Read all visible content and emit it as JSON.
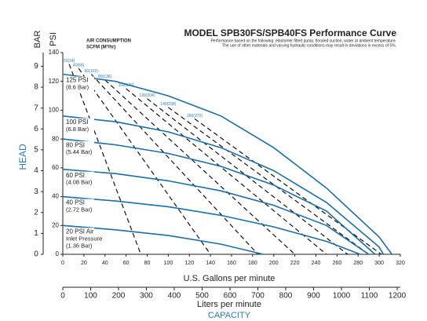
{
  "chart_data": {
    "type": "line",
    "title": "MODEL SPB30FS/SPB40FS Performance Curve",
    "subtitle": [
      "Performance based on the following: elastomer fitted pump, flooded suction, water at ambient temperature.",
      "The use of other materials and varying hydraulic conditions may result in deviations in excess of 5%."
    ],
    "air_title": [
      "AIR CONSUMPTION",
      "SCFM (M³/hr)"
    ],
    "y_label": "PSI",
    "y2_label": "BAR",
    "head_label": "HEAD",
    "x_label": "U.S. Gallons per minute",
    "x2_label": "Liters per minute",
    "capacity_label": "CAPACITY",
    "xlim": [
      0,
      320
    ],
    "xticks": [
      0,
      20,
      40,
      60,
      80,
      100,
      120,
      140,
      160,
      180,
      200,
      220,
      240,
      260,
      280,
      300,
      320
    ],
    "x2lim": [
      0,
      1211.2
    ],
    "x2ticks": [
      0,
      100,
      200,
      300,
      400,
      500,
      600,
      700,
      800,
      900,
      1000,
      1100,
      1200
    ],
    "ylim": [
      0,
      140
    ],
    "yticks": [
      0,
      20,
      40,
      60,
      80,
      100,
      120,
      140
    ],
    "y2lim": [
      0,
      9.655
    ],
    "y2ticks": [
      0,
      1,
      2,
      3,
      4,
      5,
      6,
      7,
      8,
      9
    ],
    "grid": false,
    "series": [
      {
        "name": "125 PSI",
        "label_lines": [
          "(8.6 Bar)"
        ],
        "color": "#1b6ea8",
        "x": [
          0,
          50,
          100,
          150,
          200,
          250,
          300,
          312
        ],
        "values": [
          125,
          120,
          110,
          96,
          74,
          46,
          12,
          0
        ]
      },
      {
        "name": "100 PSI",
        "label_lines": [
          "(6.8 Bar)"
        ],
        "color": "#1b6ea8",
        "x": [
          0,
          50,
          100,
          150,
          200,
          250,
          300,
          304
        ],
        "values": [
          96,
          92,
          85,
          74,
          58,
          36,
          5,
          0
        ]
      },
      {
        "name": "80 PSI",
        "label_lines": [
          "(5.44 Bar)"
        ],
        "color": "#1b6ea8",
        "x": [
          0,
          50,
          100,
          150,
          200,
          250,
          296
        ],
        "values": [
          80,
          76,
          70,
          61,
          48,
          30,
          0
        ]
      },
      {
        "name": "60 PSI",
        "label_lines": [
          "(4.08 Bar)"
        ],
        "color": "#1b6ea8",
        "x": [
          0,
          50,
          100,
          150,
          200,
          250,
          290
        ],
        "values": [
          59,
          56,
          51,
          44,
          34,
          20,
          0
        ]
      },
      {
        "name": "40 PSI",
        "label_lines": [
          "(2.72 Bar)"
        ],
        "color": "#1b6ea8",
        "x": [
          0,
          50,
          100,
          150,
          200,
          250,
          282
        ],
        "values": [
          40,
          37,
          33,
          27,
          19,
          9,
          0
        ]
      },
      {
        "name": "20 PSI Air",
        "label_lines": [
          "Inlet Pressure",
          "(1.36 Bar)"
        ],
        "color": "#1b6ea8",
        "x": [
          0,
          50,
          100,
          150,
          190
        ],
        "values": [
          20,
          17,
          13,
          7,
          0
        ]
      }
    ],
    "air_lines": [
      {
        "name": "20(34)",
        "color": "#111111",
        "x": [
          6,
          74
        ],
        "values": [
          132,
          0
        ]
      },
      {
        "name": "40(68)",
        "color": "#111111",
        "x": [
          15,
          140
        ],
        "values": [
          129,
          0
        ]
      },
      {
        "name": "60(102)",
        "color": "#111111",
        "x": [
          27,
          185
        ],
        "values": [
          125,
          0
        ]
      },
      {
        "name": "80(136)",
        "color": "#111111",
        "x": [
          40,
          220
        ],
        "values": [
          121,
          0
        ]
      },
      {
        "name": "100(170)",
        "color": "#111111",
        "x": [
          60,
          250
        ],
        "values": [
          115,
          0
        ]
      },
      {
        "name": "120(204)",
        "color": "#111111",
        "x": [
          80,
          270
        ],
        "values": [
          108,
          0
        ]
      },
      {
        "name": "140(238)",
        "color": "#111111",
        "x": [
          100,
          290
        ],
        "values": [
          102,
          0
        ]
      },
      {
        "name": "160(272)",
        "color": "#111111",
        "x": [
          125,
          302
        ],
        "values": [
          94,
          0
        ]
      }
    ],
    "label_color": "#2b7bbd"
  }
}
